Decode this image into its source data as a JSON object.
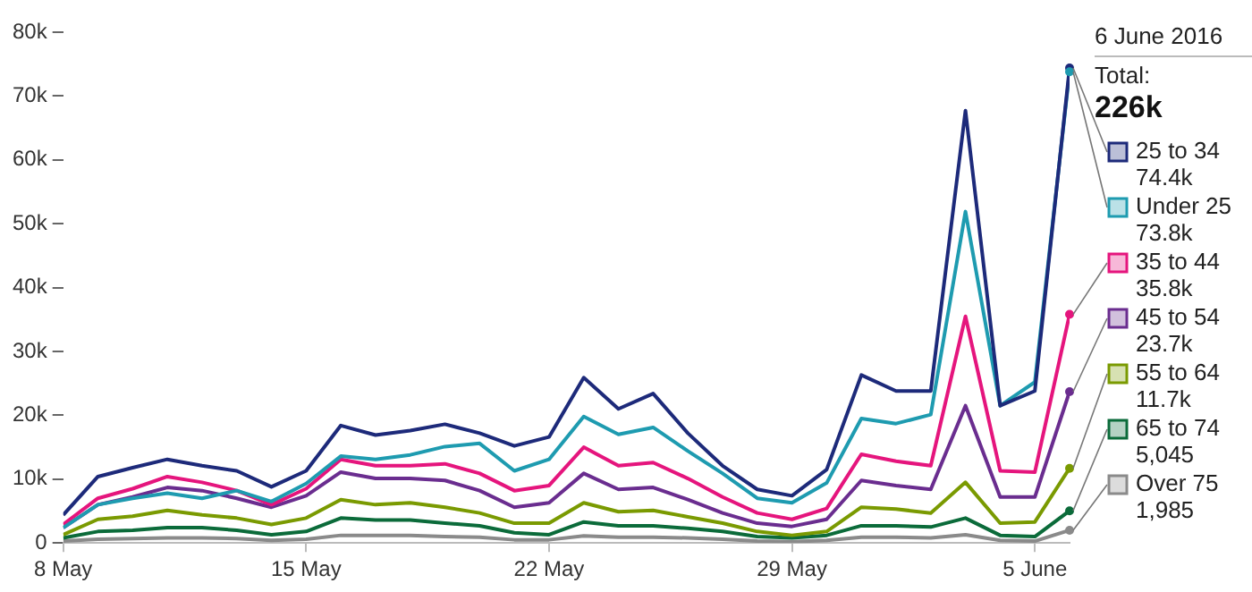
{
  "chart_data": {
    "type": "line",
    "x": [
      "2016-05-08",
      "2016-05-09",
      "2016-05-10",
      "2016-05-11",
      "2016-05-12",
      "2016-05-13",
      "2016-05-14",
      "2016-05-15",
      "2016-05-16",
      "2016-05-17",
      "2016-05-18",
      "2016-05-19",
      "2016-05-20",
      "2016-05-21",
      "2016-05-22",
      "2016-05-23",
      "2016-05-24",
      "2016-05-25",
      "2016-05-26",
      "2016-05-27",
      "2016-05-28",
      "2016-05-29",
      "2016-05-30",
      "2016-05-31",
      "2016-06-01",
      "2016-06-02",
      "2016-06-03",
      "2016-06-04",
      "2016-06-05",
      "2016-06-06"
    ],
    "series": [
      {
        "name": "25 to 34",
        "color": "#1d2a7a",
        "values": [
          4400,
          10400,
          11800,
          13100,
          12100,
          11300,
          8800,
          11300,
          18400,
          16900,
          17600,
          18600,
          17200,
          15200,
          16600,
          25900,
          21000,
          23400,
          17200,
          12100,
          8400,
          7400,
          11500,
          26300,
          23800,
          23800,
          67700,
          21500,
          23800,
          74400
        ]
      },
      {
        "name": "Under 25",
        "color": "#1e9bb0",
        "values": [
          2400,
          6000,
          7000,
          7800,
          7000,
          8200,
          6500,
          9300,
          13600,
          13100,
          13800,
          15100,
          15600,
          11300,
          13100,
          19800,
          17000,
          18100,
          14400,
          10900,
          7000,
          6300,
          9400,
          19500,
          18700,
          20100,
          51900,
          21500,
          25200,
          73800
        ]
      },
      {
        "name": "35 to 44",
        "color": "#e5157d",
        "values": [
          2900,
          7000,
          8500,
          10400,
          9500,
          8200,
          6000,
          8500,
          13100,
          12100,
          12100,
          12400,
          10900,
          8200,
          9000,
          15000,
          12100,
          12600,
          10100,
          7200,
          4700,
          3700,
          5400,
          13900,
          12800,
          12100,
          35500,
          11300,
          11100,
          35800
        ]
      },
      {
        "name": "45 to 54",
        "color": "#6a2d8f",
        "values": [
          2400,
          6000,
          7200,
          8700,
          8200,
          7000,
          5600,
          7400,
          11100,
          10100,
          10100,
          9800,
          8200,
          5600,
          6300,
          10900,
          8400,
          8700,
          6800,
          4700,
          3100,
          2600,
          3700,
          9800,
          9000,
          8400,
          21500,
          7200,
          7200,
          23700
        ]
      },
      {
        "name": "55 to 64",
        "color": "#7a9a01",
        "values": [
          1300,
          3700,
          4200,
          5100,
          4400,
          3900,
          2900,
          3900,
          6800,
          6000,
          6300,
          5600,
          4700,
          3100,
          3100,
          6300,
          4900,
          5100,
          4100,
          3100,
          1800,
          1200,
          1800,
          5600,
          5300,
          4700,
          9500,
          3100,
          3300,
          11700
        ]
      },
      {
        "name": "65 to 74",
        "color": "#0b6b3a",
        "values": [
          800,
          1800,
          2000,
          2400,
          2400,
          2000,
          1300,
          1800,
          3900,
          3600,
          3600,
          3100,
          2700,
          1600,
          1300,
          3300,
          2700,
          2700,
          2300,
          1800,
          1000,
          800,
          1200,
          2700,
          2700,
          2500,
          3900,
          1200,
          1000,
          5045
        ]
      },
      {
        "name": "Over 75",
        "color": "#8a8a8a",
        "values": [
          300,
          600,
          700,
          800,
          800,
          700,
          400,
          600,
          1200,
          1200,
          1200,
          1000,
          900,
          500,
          500,
          1100,
          900,
          900,
          800,
          600,
          300,
          200,
          400,
          900,
          900,
          800,
          1300,
          400,
          300,
          1985
        ]
      }
    ],
    "xlim": [
      "2016-05-08",
      "2016-06-06"
    ],
    "xticks": [
      {
        "value": "2016-05-08",
        "label": "8 May"
      },
      {
        "value": "2016-05-15",
        "label": "15 May"
      },
      {
        "value": "2016-05-22",
        "label": "22 May"
      },
      {
        "value": "2016-05-29",
        "label": "29 May"
      },
      {
        "value": "2016-06-05",
        "label": "5 June"
      }
    ],
    "ylim": [
      0,
      80000
    ],
    "yticks": [
      {
        "value": 0,
        "label": "0"
      },
      {
        "value": 10000,
        "label": "10k"
      },
      {
        "value": 20000,
        "label": "20k"
      },
      {
        "value": 30000,
        "label": "30k"
      },
      {
        "value": 40000,
        "label": "40k"
      },
      {
        "value": 50000,
        "label": "50k"
      },
      {
        "value": 60000,
        "label": "60k"
      },
      {
        "value": 70000,
        "label": "70k"
      },
      {
        "value": 80000,
        "label": "80k"
      }
    ],
    "grid": false,
    "legend": "right",
    "marker": "none",
    "line_style": "solid",
    "annotations": [
      "6 June 2016",
      "Total:",
      "226k",
      "74.4k",
      "73.8k",
      "35.8k",
      "23.7k",
      "11.7k",
      "5,045",
      "1,985"
    ]
  }
}
